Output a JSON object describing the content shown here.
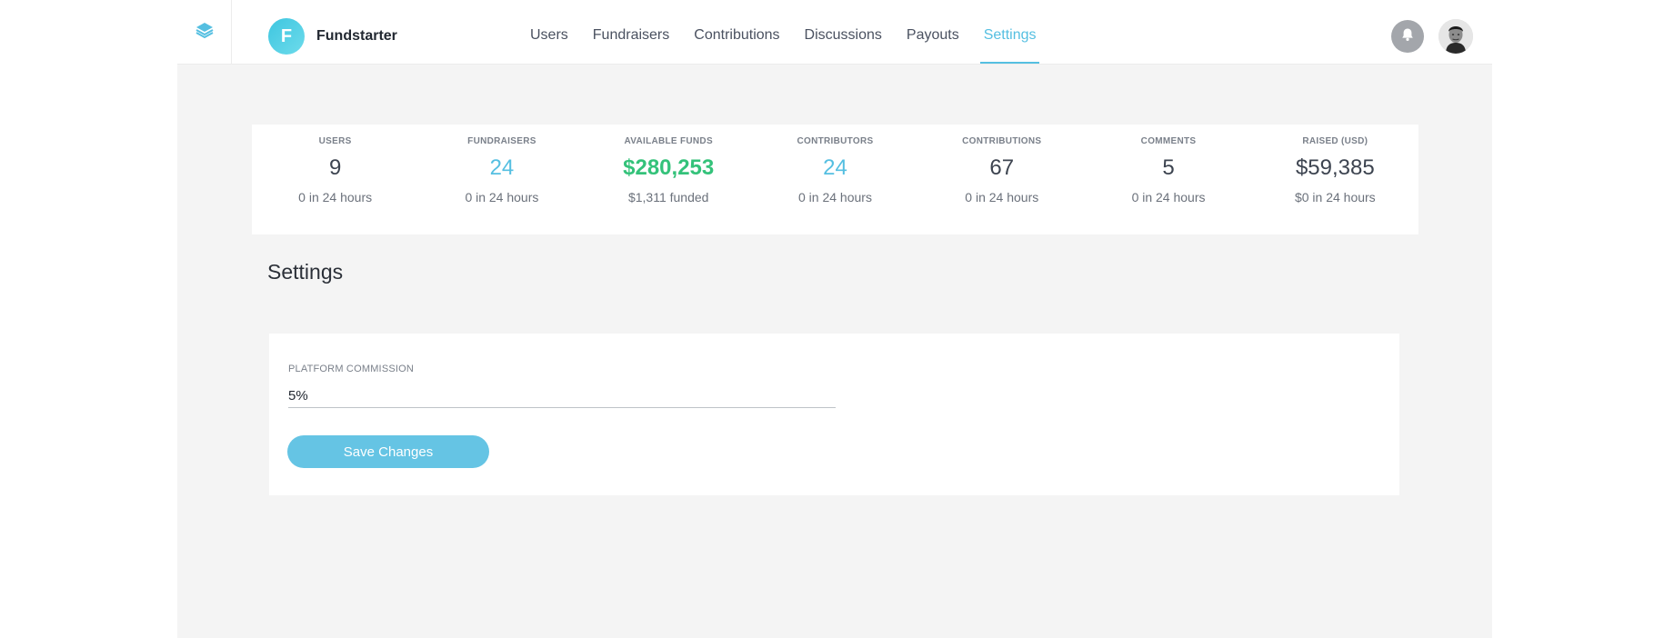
{
  "brand": {
    "logo_letter": "F",
    "name": "Fundstarter"
  },
  "nav": {
    "items": [
      {
        "label": "Users",
        "active": false
      },
      {
        "label": "Fundraisers",
        "active": false
      },
      {
        "label": "Contributions",
        "active": false
      },
      {
        "label": "Discussions",
        "active": false
      },
      {
        "label": "Payouts",
        "active": false
      },
      {
        "label": "Settings",
        "active": true
      }
    ]
  },
  "icons": {
    "layers": "layers-icon",
    "bell": "bell-icon",
    "avatar": "user-avatar"
  },
  "colors": {
    "accent": "#55bfe1",
    "positive": "#34c27a",
    "background": "#f4f4f4"
  },
  "stats": [
    {
      "label": "USERS",
      "value": "9",
      "sub": "0 in 24 hours",
      "tone": "default"
    },
    {
      "label": "FUNDRAISERS",
      "value": "24",
      "sub": "0 in 24 hours",
      "tone": "teal"
    },
    {
      "label": "AVAILABLE FUNDS",
      "value": "$280,253",
      "sub": "$1,311 funded",
      "tone": "green"
    },
    {
      "label": "CONTRIBUTORS",
      "value": "24",
      "sub": "0 in 24 hours",
      "tone": "teal"
    },
    {
      "label": "CONTRIBUTIONS",
      "value": "67",
      "sub": "0 in 24 hours",
      "tone": "default"
    },
    {
      "label": "COMMENTS",
      "value": "5",
      "sub": "0 in 24 hours",
      "tone": "default"
    },
    {
      "label": "RAISED (USD)",
      "value": "$59,385",
      "sub": "$0 in 24 hours",
      "tone": "default"
    }
  ],
  "page": {
    "title": "Settings"
  },
  "settings_form": {
    "commission_label": "PLATFORM COMMISSION",
    "commission_value": "5%",
    "save_label": "Save Changes"
  }
}
